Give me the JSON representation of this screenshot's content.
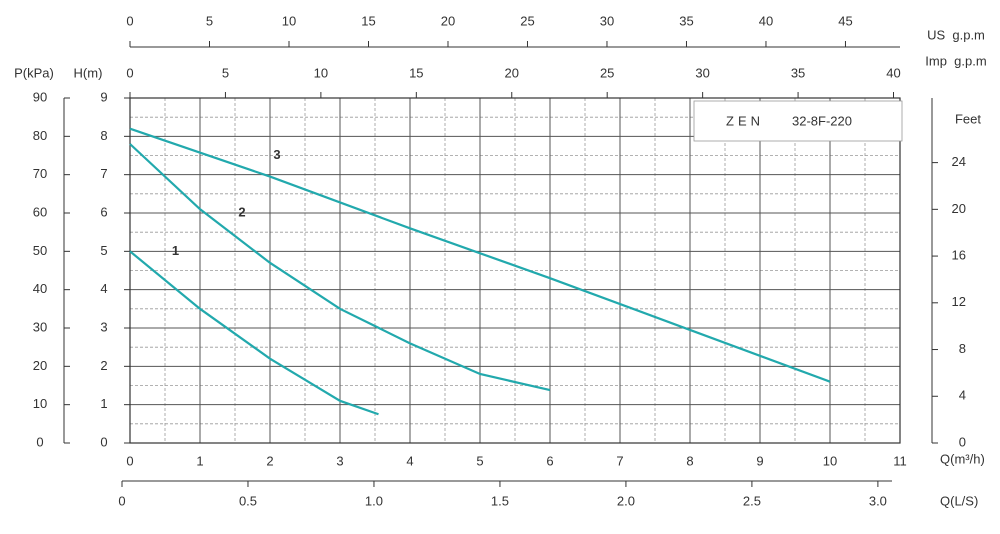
{
  "chart_data": {
    "type": "line",
    "brand": "ZEN",
    "model": "32-8F-220",
    "xlabel": "Q(m³/h)",
    "ylabel": "H(m)",
    "xlim": [
      0,
      11
    ],
    "xticks": [
      0,
      1,
      2,
      3,
      4,
      5,
      6,
      7,
      8,
      9,
      10,
      11
    ],
    "ylim": [
      0,
      9
    ],
    "yticks": [
      0,
      1,
      2,
      3,
      4,
      5,
      6,
      7,
      8,
      9
    ],
    "grid": true,
    "extra_axes": [
      {
        "label": "P(kPa)",
        "side": "left",
        "lim": [
          0,
          90
        ],
        "ticks": [
          0,
          10,
          20,
          30,
          40,
          50,
          60,
          70,
          80,
          90
        ]
      },
      {
        "label": "Feet",
        "side": "right",
        "lim": [
          0,
          29.53
        ],
        "ticks": [
          0,
          4,
          8,
          12,
          16,
          20,
          24
        ]
      },
      {
        "label": "US  g.p.m",
        "side": "top",
        "lim": [
          0,
          48.43
        ],
        "ticks": [
          0,
          5,
          10,
          15,
          20,
          25,
          30,
          35,
          40,
          45
        ]
      },
      {
        "label": "Imp  g.p.m",
        "side": "top",
        "lim": [
          0,
          40.34
        ],
        "ticks": [
          0,
          5,
          10,
          15,
          20,
          25,
          30,
          35,
          40
        ]
      },
      {
        "label": "Q(L/S)",
        "side": "bottom",
        "lim": [
          0,
          3.056
        ],
        "ticks": [
          0,
          0.5,
          {
            "value": 1,
            "label": "1.0"
          },
          1.5,
          {
            "value": 2,
            "label": "2.0"
          },
          2.5,
          {
            "value": 3,
            "label": "3.0"
          }
        ]
      }
    ],
    "series": [
      {
        "name": "1",
        "color": "#22a9ad",
        "x": [
          0,
          1,
          2,
          3,
          3.55
        ],
        "values": [
          5.0,
          3.5,
          2.2,
          1.1,
          0.75
        ]
      },
      {
        "name": "2",
        "color": "#22a9ad",
        "x": [
          0,
          1,
          2,
          3,
          4,
          5,
          6
        ],
        "values": [
          7.8,
          6.1,
          4.7,
          3.5,
          2.6,
          1.8,
          1.38
        ]
      },
      {
        "name": "3",
        "color": "#22a9ad",
        "x": [
          0,
          2,
          4,
          6,
          8,
          10
        ],
        "values": [
          8.2,
          6.95,
          5.6,
          4.3,
          2.95,
          1.6
        ]
      }
    ]
  }
}
